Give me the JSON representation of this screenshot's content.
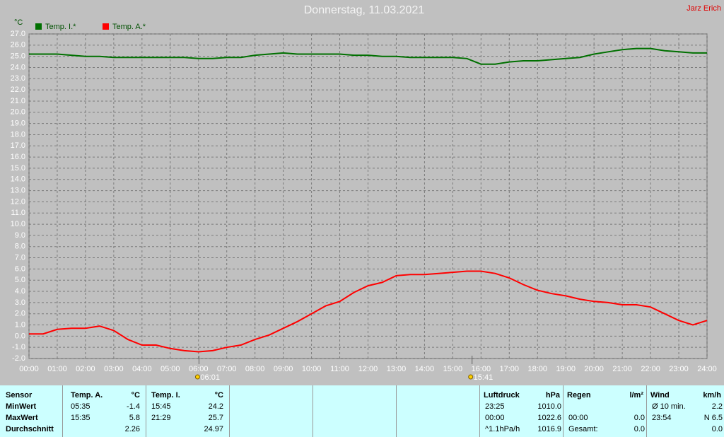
{
  "chart_data": {
    "type": "line",
    "title": "Donnerstag, 11.03.2021",
    "author": "Jarz Erich",
    "y_unit": "°C",
    "x": [
      0,
      0.5,
      1,
      1.5,
      2,
      2.5,
      3,
      3.5,
      4,
      4.5,
      5,
      5.5,
      6,
      6.5,
      7,
      7.5,
      8,
      8.5,
      9,
      9.5,
      10,
      10.5,
      11,
      11.5,
      12,
      12.5,
      13,
      13.5,
      14,
      14.5,
      15,
      15.5,
      16,
      16.5,
      17,
      17.5,
      18,
      18.5,
      19,
      19.5,
      20,
      20.5,
      21,
      21.5,
      22,
      22.5,
      23,
      23.5,
      24
    ],
    "series": [
      {
        "name": "Temp. I.*",
        "color": "#007000",
        "values": [
          25.2,
          25.2,
          25.2,
          25.1,
          25.0,
          25.0,
          24.9,
          24.9,
          24.9,
          24.9,
          24.9,
          24.9,
          24.8,
          24.8,
          24.9,
          24.9,
          25.1,
          25.2,
          25.3,
          25.2,
          25.2,
          25.2,
          25.2,
          25.1,
          25.1,
          25.0,
          25.0,
          24.9,
          24.9,
          24.9,
          24.9,
          24.8,
          24.3,
          24.3,
          24.5,
          24.6,
          24.6,
          24.7,
          24.8,
          24.9,
          25.2,
          25.4,
          25.6,
          25.7,
          25.7,
          25.5,
          25.4,
          25.3,
          25.3
        ]
      },
      {
        "name": "Temp. A.*",
        "color": "#ff0000",
        "values": [
          0.2,
          0.2,
          0.6,
          0.7,
          0.7,
          0.9,
          0.5,
          -0.3,
          -0.8,
          -0.8,
          -1.1,
          -1.3,
          -1.4,
          -1.3,
          -1.0,
          -0.8,
          -0.3,
          0.1,
          0.7,
          1.3,
          2.0,
          2.7,
          3.1,
          3.9,
          4.5,
          4.8,
          5.4,
          5.5,
          5.5,
          5.6,
          5.7,
          5.8,
          5.8,
          5.6,
          5.2,
          4.6,
          4.1,
          3.8,
          3.6,
          3.3,
          3.1,
          3.0,
          2.8,
          2.8,
          2.6,
          2.0,
          1.4,
          1.0,
          1.4
        ]
      }
    ],
    "xlim": [
      0,
      24
    ],
    "xticks": [
      {
        "value": 0,
        "label": "00:00"
      },
      {
        "value": 1,
        "label": "01:00"
      },
      {
        "value": 2,
        "label": "02:00"
      },
      {
        "value": 3,
        "label": "03:00"
      },
      {
        "value": 4,
        "label": "04:00"
      },
      {
        "value": 5,
        "label": "05:00"
      },
      {
        "value": 6,
        "label": "06:00"
      },
      {
        "value": 7,
        "label": "07:00"
      },
      {
        "value": 8,
        "label": "08:00"
      },
      {
        "value": 9,
        "label": "09:00"
      },
      {
        "value": 10,
        "label": "10:00"
      },
      {
        "value": 11,
        "label": "11:00"
      },
      {
        "value": 12,
        "label": "12:00"
      },
      {
        "value": 13,
        "label": "13:00"
      },
      {
        "value": 14,
        "label": "14:00"
      },
      {
        "value": 15,
        "label": "15:00"
      },
      {
        "value": 16,
        "label": "16:00"
      },
      {
        "value": 17,
        "label": "17:00"
      },
      {
        "value": 18,
        "label": "18:00"
      },
      {
        "value": 19,
        "label": "19:00"
      },
      {
        "value": 20,
        "label": "20:00"
      },
      {
        "value": 21,
        "label": "21:00"
      },
      {
        "value": 22,
        "label": "22:00"
      },
      {
        "value": 23,
        "label": "23:00"
      },
      {
        "value": 24,
        "label": "24:00"
      }
    ],
    "ylim": [
      -2,
      27
    ],
    "yticks": [
      {
        "value": -2,
        "label": "-2.0"
      },
      {
        "value": -1,
        "label": "-1.0"
      },
      {
        "value": 0,
        "label": "0.0"
      },
      {
        "value": 1,
        "label": "1.0"
      },
      {
        "value": 2,
        "label": "2.0"
      },
      {
        "value": 3,
        "label": "3.0"
      },
      {
        "value": 4,
        "label": "4.0"
      },
      {
        "value": 5,
        "label": "5.0"
      },
      {
        "value": 6,
        "label": "6.0"
      },
      {
        "value": 7,
        "label": "7.0"
      },
      {
        "value": 8,
        "label": "8.0"
      },
      {
        "value": 9,
        "label": "9.0"
      },
      {
        "value": 10,
        "label": "10.0"
      },
      {
        "value": 11,
        "label": "11.0"
      },
      {
        "value": 12,
        "label": "12.0"
      },
      {
        "value": 13,
        "label": "13.0"
      },
      {
        "value": 14,
        "label": "14.0"
      },
      {
        "value": 15,
        "label": "15.0"
      },
      {
        "value": 16,
        "label": "16.0"
      },
      {
        "value": 17,
        "label": "17.0"
      },
      {
        "value": 18,
        "label": "18.0"
      },
      {
        "value": 19,
        "label": "19.0"
      },
      {
        "value": 20,
        "label": "20.0"
      },
      {
        "value": 21,
        "label": "21.0"
      },
      {
        "value": 22,
        "label": "22.0"
      },
      {
        "value": 23,
        "label": "23.0"
      },
      {
        "value": 24,
        "label": "24.0"
      },
      {
        "value": 25,
        "label": "25.0"
      },
      {
        "value": 26,
        "label": "26.0"
      },
      {
        "value": 27,
        "label": "27.0"
      }
    ],
    "grid": true,
    "annotations": [
      {
        "x": 6.0167,
        "label": "06:01"
      },
      {
        "x": 15.6833,
        "label": "15:41"
      }
    ]
  },
  "table": {
    "sensor": {
      "headers": [
        "Sensor",
        "Temp. A.",
        "°C",
        "Temp. I.",
        "°C"
      ],
      "rows": [
        [
          "MinWert",
          "05:35",
          "-1.4",
          "15:45",
          "24.2"
        ],
        [
          "MaxWert",
          "15:35",
          "5.8",
          "21:29",
          "25.7"
        ],
        [
          "Durchschnitt",
          "2.26",
          "24.97"
        ]
      ]
    },
    "pressure": {
      "headers": [
        "Luftdruck",
        "hPa"
      ],
      "rows": [
        [
          "23:25",
          "1010.0"
        ],
        [
          "00:00",
          "1022.6"
        ],
        [
          "^1.1hPa/h",
          "1016.9"
        ]
      ]
    },
    "rain": {
      "headers": [
        "Regen",
        "l/m²"
      ],
      "rows": [
        [
          "00:00",
          "0.0"
        ],
        [
          "Gesamt:",
          "0.0"
        ]
      ]
    },
    "wind": {
      "headers": [
        "Wind",
        "km/h"
      ],
      "rows": [
        [
          "Ø 10 min.",
          "2.2"
        ],
        [
          "23:54",
          "N 6.5"
        ],
        [
          "0.0"
        ]
      ]
    }
  }
}
